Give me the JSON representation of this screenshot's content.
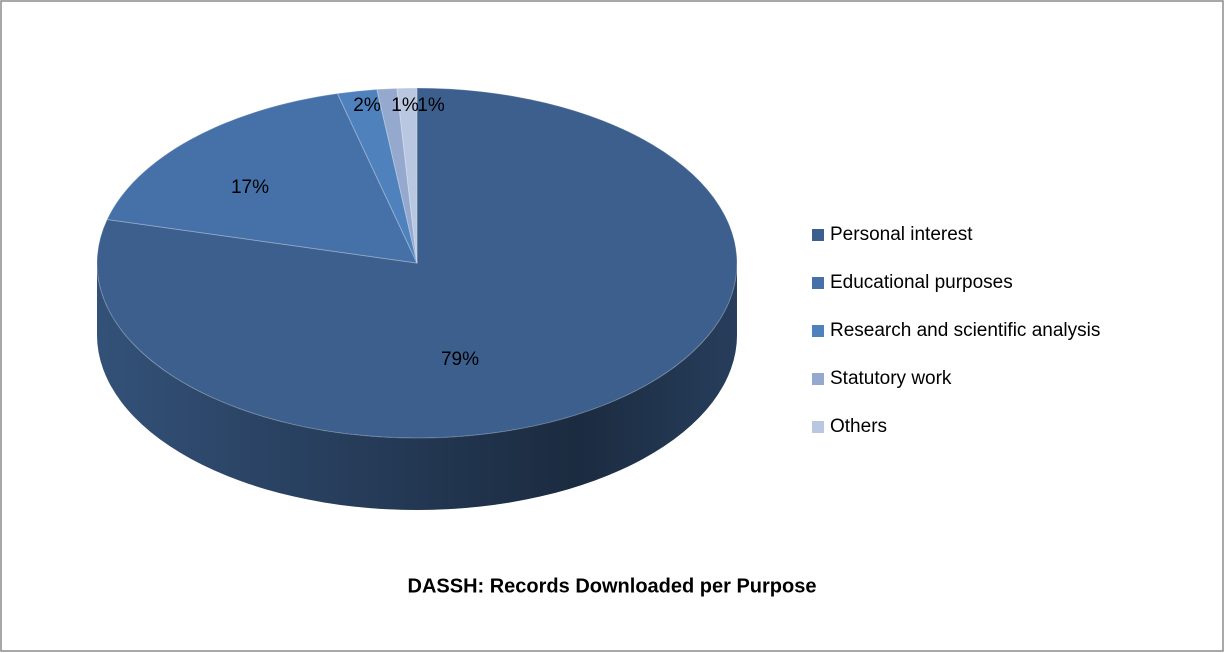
{
  "chart_data": {
    "type": "pie",
    "title": "DASSH: Records Downloaded per Purpose",
    "categories": [
      "Personal interest",
      "Educational purposes",
      "Research and scientific analysis",
      "Statutory work",
      "Others"
    ],
    "values": [
      79,
      17,
      2,
      1,
      1
    ],
    "value_labels": [
      "79%",
      "17%",
      "2%",
      "1%",
      "1%"
    ],
    "colors": [
      "#3c5f8d",
      "#4571a8",
      "#4f81bd",
      "#95a9cf",
      "#b9c7e0"
    ],
    "legend": "right"
  }
}
